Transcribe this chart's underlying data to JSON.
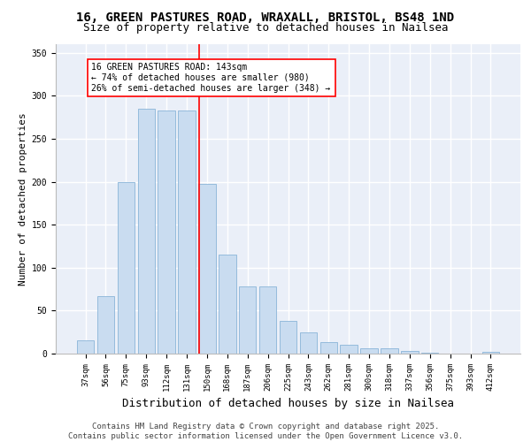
{
  "title_line1": "16, GREEN PASTURES ROAD, WRAXALL, BRISTOL, BS48 1ND",
  "title_line2": "Size of property relative to detached houses in Nailsea",
  "xlabel": "Distribution of detached houses by size in Nailsea",
  "ylabel": "Number of detached properties",
  "categories": [
    "37sqm",
    "56sqm",
    "75sqm",
    "93sqm",
    "112sqm",
    "131sqm",
    "150sqm",
    "168sqm",
    "187sqm",
    "206sqm",
    "225sqm",
    "243sqm",
    "262sqm",
    "281sqm",
    "300sqm",
    "318sqm",
    "337sqm",
    "356sqm",
    "375sqm",
    "393sqm",
    "412sqm"
  ],
  "values": [
    15,
    67,
    200,
    285,
    283,
    283,
    197,
    115,
    78,
    78,
    38,
    25,
    13,
    10,
    6,
    6,
    3,
    1,
    0,
    0,
    2
  ],
  "bar_color": "#c9dcf0",
  "bar_edge_color": "#8ab4d8",
  "vline_color": "red",
  "vline_pos": 5.63,
  "annotation_text": "16 GREEN PASTURES ROAD: 143sqm\n← 74% of detached houses are smaller (980)\n26% of semi-detached houses are larger (348) →",
  "annotation_box_color": "white",
  "annotation_box_edge_color": "red",
  "footer_text": "Contains HM Land Registry data © Crown copyright and database right 2025.\nContains public sector information licensed under the Open Government Licence v3.0.",
  "ylim": [
    0,
    360
  ],
  "yticks": [
    0,
    50,
    100,
    150,
    200,
    250,
    300,
    350
  ],
  "bg_color": "#eaeff8",
  "grid_color": "white",
  "title_fontsize": 10,
  "subtitle_fontsize": 9,
  "xlabel_fontsize": 9,
  "ylabel_fontsize": 8,
  "tick_fontsize": 6.5,
  "annotation_fontsize": 7,
  "footer_fontsize": 6.5
}
